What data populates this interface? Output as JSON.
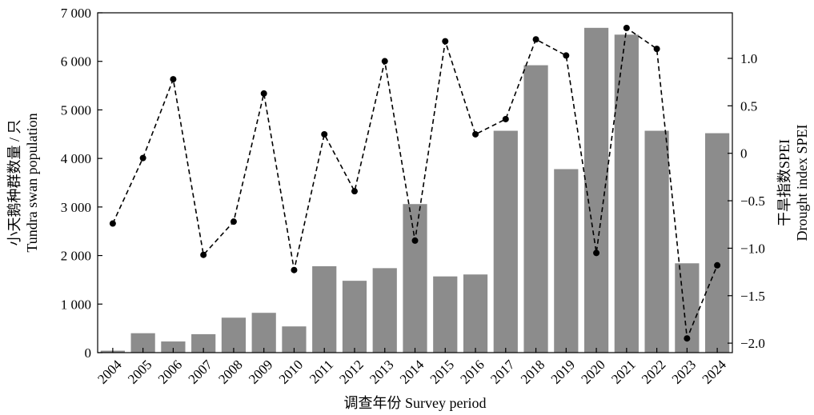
{
  "chart_data": {
    "type": "bar+line",
    "categories": [
      "2004",
      "2005",
      "2006",
      "2007",
      "2008",
      "2009",
      "2010",
      "2011",
      "2012",
      "2013",
      "2014",
      "2015",
      "2016",
      "2017",
      "2018",
      "2019",
      "2020",
      "2021",
      "2022",
      "2023",
      "2024"
    ],
    "series": [
      {
        "axis": "left",
        "kind": "bar",
        "color": "#8c8c8c",
        "values": [
          40,
          400,
          230,
          380,
          720,
          820,
          540,
          1780,
          1480,
          1740,
          3060,
          1570,
          1610,
          4570,
          5920,
          3780,
          6690,
          6550,
          4570,
          1840,
          4520
        ]
      },
      {
        "axis": "right",
        "kind": "line",
        "style": "dashed-with-dots",
        "color": "#000000",
        "values": [
          -0.74,
          -0.05,
          0.78,
          -1.07,
          -0.72,
          0.63,
          -1.23,
          0.2,
          -0.4,
          0.97,
          -0.92,
          1.18,
          0.2,
          0.36,
          1.2,
          1.03,
          -1.05,
          1.32,
          1.1,
          -1.95,
          -1.18
        ]
      }
    ],
    "ylim_left": [
      0,
      7000
    ],
    "yticks_left": [
      0,
      1000,
      2000,
      3000,
      4000,
      5000,
      6000,
      7000
    ],
    "ytick_labels_left": [
      "0",
      "1 000",
      "2 000",
      "3 000",
      "4 000",
      "5 000",
      "6 000",
      "7 000"
    ],
    "ylim_right": [
      -2.1,
      1.48
    ],
    "yticks_right": [
      -2.0,
      -1.5,
      -1.0,
      -0.5,
      0,
      0.5,
      1.0
    ],
    "ytick_labels_right": [
      "−2.0",
      "−1.5",
      "−1.0",
      "−0.5",
      "0",
      "0.5",
      "1.0"
    ],
    "ylabel_left": [
      "小天鹅种群数量 / 只",
      "Tundra swan population"
    ],
    "ylabel_right": [
      "干旱指数SPEI",
      "Drought index SPEI"
    ],
    "xlabel": "调查年份 Survey period",
    "grid": false,
    "legend": "none"
  }
}
